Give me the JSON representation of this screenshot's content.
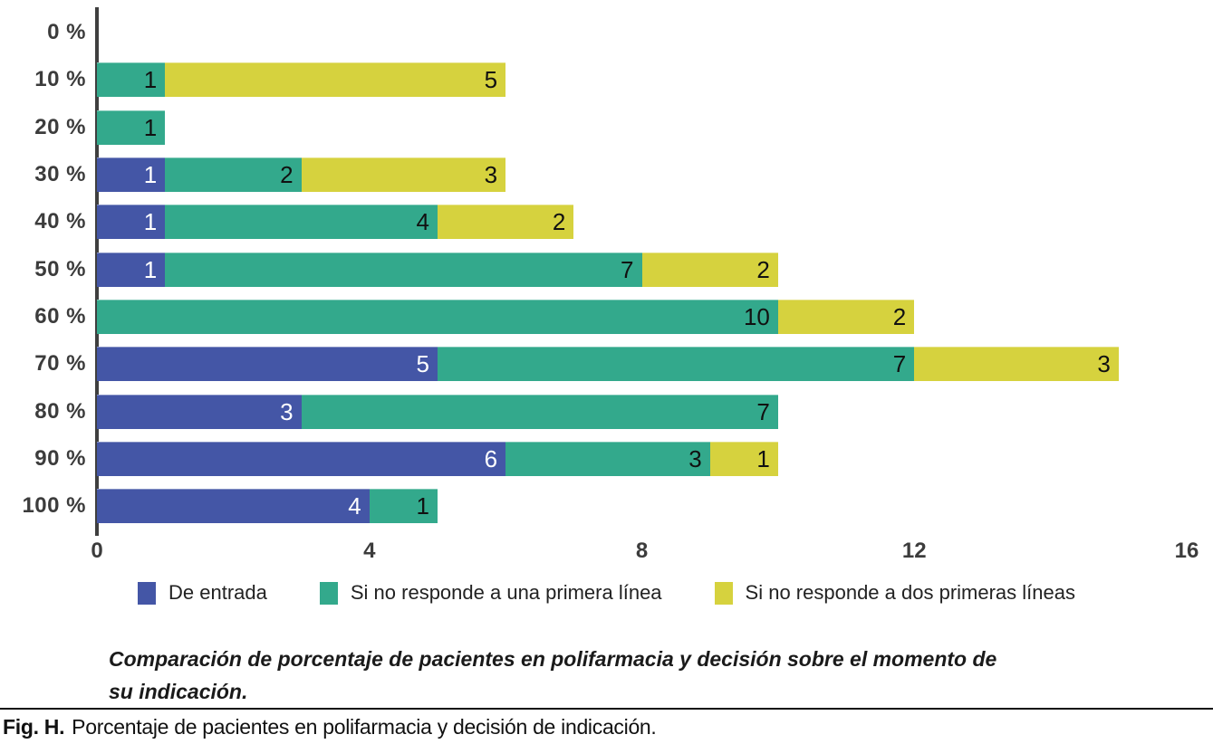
{
  "chart_data": {
    "type": "bar",
    "variant": "horizontal-stacked",
    "categories": [
      "0 %",
      "10 %",
      "20 %",
      "30 %",
      "40 %",
      "50 %",
      "60 %",
      "70 %",
      "80 %",
      "90 %",
      "100 %"
    ],
    "xmax": 16,
    "xticks": [
      {
        "label": "0",
        "value": 0
      },
      {
        "label": "4",
        "value": 4
      },
      {
        "label": "8",
        "value": 8
      },
      {
        "label": "12",
        "value": 12
      },
      {
        "label": "16",
        "value": 16
      }
    ],
    "series": [
      {
        "name": "De entrada",
        "color": "#4456a6",
        "value_color": "#ffffff",
        "values": [
          0,
          0,
          0,
          1,
          1,
          1,
          0,
          5,
          3,
          6,
          4
        ]
      },
      {
        "name": "Si no responde a una primera línea",
        "color": "#33a98c",
        "value_color": "#111111",
        "values": [
          0,
          1,
          1,
          2,
          4,
          7,
          10,
          7,
          7,
          3,
          1
        ]
      },
      {
        "name": "Si no responde a dos primeras líneas",
        "color": "#d6d23e",
        "value_color": "#111111",
        "values": [
          0,
          5,
          0,
          3,
          2,
          2,
          2,
          3,
          0,
          1,
          0
        ]
      }
    ],
    "grid": false,
    "legend_position": "bottom",
    "axis_color": "#3f3f3f"
  },
  "caption": {
    "text": "Comparación de porcentaje de pacientes en polifarmacia y decisión sobre el momento de su indicación."
  },
  "figure_note": {
    "label": "Fig. H.",
    "text": "Porcentaje de pacientes en polifarmacia y decisión de indicación."
  }
}
